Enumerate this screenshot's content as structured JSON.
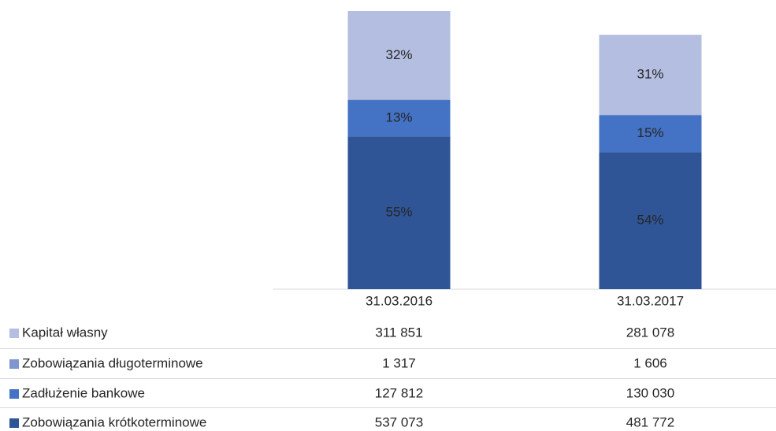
{
  "chart_data": {
    "type": "bar",
    "stacked": true,
    "categories": [
      "31.03.2016",
      "31.03.2017"
    ],
    "series": [
      {
        "name": "Kapitał własny",
        "color": "#b4bee0",
        "values": [
          311851,
          281078
        ],
        "value_labels": [
          "311 851",
          "281 078"
        ],
        "share_labels": [
          "32%",
          "31%"
        ]
      },
      {
        "name": "Zobowiązania długoterminowe",
        "color": "#7f96d0",
        "values": [
          1317,
          1606
        ],
        "value_labels": [
          "1 317",
          "1 606"
        ]
      },
      {
        "name": "Zadłużenie bankowe",
        "color": "#4472c4",
        "values": [
          127812,
          130030
        ],
        "value_labels": [
          "127 812",
          "130 030"
        ],
        "share_labels": [
          "13%",
          "15%"
        ]
      },
      {
        "name": "Zobowiązania krótkoterminowe",
        "color": "#2f5597",
        "values": [
          537073,
          481772
        ],
        "value_labels": [
          "537 073",
          "481 772"
        ],
        "share_labels": [
          "55%",
          "54%"
        ]
      }
    ]
  }
}
